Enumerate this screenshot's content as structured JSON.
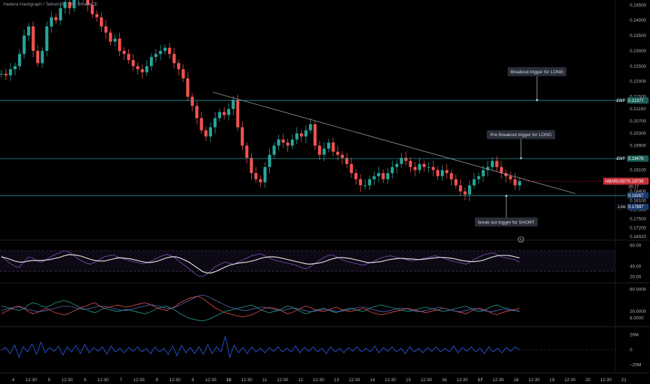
{
  "header": {
    "title": "Hedera Hashgraph / TetherUS · 1h · BINANCE"
  },
  "colors": {
    "up": "#26a69a",
    "down": "#ef5350",
    "level": "#2a9d9a",
    "trend": "#9aa0a8",
    "rsi": "#7e57c2",
    "rsi_ma": "#e0e0e0",
    "dmi_plus": "#26a69a",
    "dmi_minus": "#ef5350",
    "adx": "#5c6bc0",
    "osc": "#2962ff",
    "low_tag": "#1c3a6b",
    "price_tag": "#c62f3a"
  },
  "chart_data": [
    {
      "type": "candlestick",
      "pair": "HBARUSDT",
      "y_ticks": [
        "0.24500",
        "0.24000",
        "0.23500",
        "0.23000",
        "0.22500",
        "0.22000",
        "0.21500",
        "0.21100",
        "0.20700",
        "0.20300",
        "0.19900",
        "0.19500",
        "0.19100",
        "0.18700",
        "0.18400",
        "0.18100",
        "0.17800",
        "0.17500",
        "0.17200",
        "0.16920"
      ],
      "ylim": [
        0.1692,
        0.2462
      ],
      "x_ticks": [
        "4",
        "12:30",
        "5",
        "12:30",
        "6",
        "12:30",
        "7",
        "12:30",
        "8",
        "12:30",
        "9",
        "12:30",
        "10",
        "12:30",
        "11",
        "12:30",
        "12",
        "12:30",
        "13",
        "12:30",
        "14",
        "12:30",
        "15",
        "12:30",
        "16",
        "12:30",
        "17",
        "12:30",
        "18",
        "12:30",
        "19",
        "12:30",
        "20",
        "12:30",
        "21"
      ],
      "candles": [
        0.2225,
        0.222,
        0.224,
        0.225,
        0.229,
        0.235,
        0.238,
        0.23,
        0.226,
        0.23,
        0.238,
        0.241,
        0.24,
        0.244,
        0.246,
        0.244,
        0.247,
        0.25,
        0.248,
        0.245,
        0.242,
        0.241,
        0.238,
        0.236,
        0.233,
        0.234,
        0.23,
        0.229,
        0.227,
        0.225,
        0.224,
        0.223,
        0.225,
        0.228,
        0.229,
        0.23,
        0.231,
        0.229,
        0.226,
        0.224,
        0.221,
        0.215,
        0.212,
        0.208,
        0.204,
        0.202,
        0.205,
        0.208,
        0.21,
        0.209,
        0.211,
        0.214,
        0.205,
        0.199,
        0.195,
        0.19,
        0.188,
        0.187,
        0.192,
        0.196,
        0.199,
        0.201,
        0.2,
        0.199,
        0.201,
        0.203,
        0.202,
        0.204,
        0.206,
        0.199,
        0.196,
        0.198,
        0.2,
        0.197,
        0.196,
        0.195,
        0.193,
        0.19,
        0.188,
        0.186,
        0.186,
        0.188,
        0.189,
        0.19,
        0.188,
        0.19,
        0.192,
        0.193,
        0.195,
        0.194,
        0.192,
        0.191,
        0.193,
        0.192,
        0.192,
        0.191,
        0.189,
        0.191,
        0.19,
        0.188,
        0.186,
        0.184,
        0.183,
        0.186,
        0.188,
        0.189,
        0.191,
        0.192,
        0.194,
        0.192,
        0.19,
        0.189,
        0.188,
        0.186,
        0.1874
      ],
      "trendline": {
        "start": {
          "x": "9 12:30",
          "y": 0.2165
        },
        "end": {
          "x": "19 12:30",
          "y": 0.1833
        }
      },
      "levels": [
        {
          "label": "ENT",
          "value": "0.21377",
          "y": 0.21377
        },
        {
          "label": "ENT",
          "value": "0.19476",
          "y": 0.19476
        },
        {
          "label": "",
          "value": "0.18267",
          "y": 0.18267
        }
      ],
      "current_price": {
        "label": "HBARUSDT",
        "value": "0.18736",
        "countdown": "35:17",
        "y": 0.18736
      },
      "low": {
        "label": "Low",
        "value": "0.17897",
        "y": 0.17897
      },
      "annotations": [
        {
          "text": "Breakout trigger for LONG",
          "y": 0.2232
        },
        {
          "text": "Pre Breakout trigger for LONG",
          "y": 0.2026
        },
        {
          "text": "break out trigger for SHORT",
          "y": 0.174
        }
      ]
    },
    {
      "type": "line",
      "panel": "rsi",
      "y_ticks": [
        "80.00",
        "40.00",
        "20.00"
      ],
      "ylim": [
        15,
        82
      ],
      "bands": [
        70,
        30
      ],
      "series": [
        {
          "key": "rsi",
          "values": [
            60,
            52,
            45,
            40,
            38,
            48,
            58,
            56,
            50,
            48,
            52,
            58,
            62,
            66,
            70,
            68,
            62,
            55,
            50,
            46,
            44,
            48,
            53,
            58,
            60,
            62,
            58,
            55,
            52,
            50,
            48,
            46,
            45,
            48,
            52,
            56,
            60,
            63,
            60,
            55,
            48,
            42,
            35,
            28,
            22,
            20,
            25,
            32,
            40,
            44,
            48,
            46,
            44,
            48,
            52,
            56,
            60,
            62,
            64,
            60,
            56,
            52,
            50,
            48,
            46,
            44,
            42,
            38,
            35,
            38,
            44,
            50,
            56,
            60,
            62,
            58,
            54,
            50,
            48,
            46,
            44,
            42,
            45,
            48,
            52,
            56,
            58,
            60,
            58,
            56,
            54,
            52,
            50,
            52,
            54,
            56,
            58,
            60,
            58,
            55,
            52,
            50,
            48,
            46,
            44,
            48,
            54,
            58,
            62,
            64,
            66,
            62,
            58,
            56,
            54,
            52,
            48
          ]
        },
        {
          "key": "rsi_ma",
          "values": [
            58,
            56,
            53,
            50,
            48,
            48,
            50,
            51,
            51,
            51,
            52,
            53,
            55,
            57,
            60,
            62,
            62,
            61,
            59,
            56,
            53,
            51,
            50,
            50,
            52,
            54,
            56,
            56,
            55,
            54,
            52,
            50,
            48,
            47,
            48,
            50,
            53,
            56,
            58,
            58,
            56,
            52,
            48,
            42,
            36,
            30,
            27,
            27,
            30,
            34,
            38,
            42,
            44,
            46,
            47,
            48,
            50,
            52,
            55,
            57,
            58,
            58,
            57,
            55,
            53,
            51,
            49,
            47,
            45,
            44,
            45,
            46,
            48,
            51,
            54,
            56,
            57,
            56,
            55,
            53,
            51,
            49,
            47,
            47,
            48,
            49,
            51,
            53,
            54,
            55,
            55,
            54,
            54,
            53,
            53,
            54,
            55,
            56,
            57,
            57,
            56,
            55,
            53,
            51,
            50,
            49,
            49,
            50,
            52,
            55,
            58,
            60,
            61,
            61,
            60,
            58,
            56
          ]
        }
      ]
    },
    {
      "type": "line",
      "panel": "dmi",
      "y_ticks": [
        "60.0000",
        "20.0000",
        "8.0000"
      ],
      "ylim": [
        0,
        66
      ],
      "series": [
        {
          "key": "dmi_plus",
          "values": [
            30,
            28,
            26,
            24,
            22,
            25,
            32,
            36,
            34,
            30,
            28,
            31,
            36,
            38,
            40,
            38,
            34,
            30,
            26,
            24,
            20,
            18,
            22,
            26,
            24,
            22,
            20,
            22,
            24,
            22,
            20,
            18,
            16,
            18,
            22,
            26,
            28,
            30,
            26,
            22,
            16,
            12,
            8,
            6,
            4,
            3,
            5,
            8,
            12,
            16,
            20,
            22,
            24,
            26,
            28,
            30,
            32,
            28,
            24,
            20,
            18,
            20,
            22,
            26,
            30,
            28,
            24,
            20,
            16,
            18,
            22,
            24,
            26,
            24,
            20,
            18,
            22,
            24,
            26,
            24,
            22,
            20,
            24,
            28,
            30,
            32,
            30,
            28,
            26,
            24,
            22,
            20,
            22,
            24,
            26,
            28,
            26,
            24,
            22,
            20,
            22,
            24,
            26,
            28,
            30,
            26,
            22,
            20,
            22,
            26,
            30,
            32,
            28,
            26,
            24,
            22,
            20
          ]
        },
        {
          "key": "dmi_minus",
          "values": [
            16,
            20,
            24,
            28,
            30,
            26,
            20,
            16,
            18,
            22,
            26,
            22,
            18,
            16,
            14,
            16,
            20,
            24,
            28,
            30,
            34,
            36,
            30,
            26,
            28,
            30,
            32,
            30,
            28,
            30,
            32,
            34,
            36,
            34,
            30,
            26,
            24,
            22,
            26,
            30,
            36,
            40,
            44,
            46,
            48,
            44,
            38,
            32,
            26,
            22,
            18,
            16,
            14,
            12,
            10,
            12,
            14,
            18,
            22,
            26,
            28,
            26,
            24,
            20,
            16,
            18,
            22,
            26,
            30,
            28,
            24,
            22,
            20,
            22,
            26,
            28,
            24,
            22,
            20,
            22,
            24,
            26,
            22,
            18,
            16,
            14,
            16,
            18,
            20,
            22,
            24,
            26,
            24,
            22,
            20,
            18,
            20,
            22,
            24,
            26,
            24,
            22,
            20,
            18,
            16,
            20,
            24,
            26,
            24,
            20,
            16,
            14,
            18,
            20,
            22,
            24,
            26
          ]
        },
        {
          "key": "adx",
          "values": [
            22,
            24,
            26,
            28,
            28,
            26,
            24,
            22,
            20,
            20,
            22,
            24,
            26,
            28,
            30,
            30,
            28,
            26,
            24,
            24,
            26,
            28,
            30,
            30,
            28,
            26,
            24,
            22,
            22,
            24,
            26,
            28,
            30,
            32,
            32,
            30,
            28,
            26,
            26,
            28,
            32,
            36,
            40,
            44,
            48,
            50,
            48,
            44,
            40,
            36,
            32,
            28,
            26,
            24,
            22,
            22,
            24,
            26,
            28,
            28,
            26,
            24,
            22,
            22,
            24,
            26,
            26,
            24,
            22,
            20,
            20,
            22,
            24,
            24,
            22,
            20,
            20,
            22,
            24,
            26,
            28,
            28,
            26,
            24,
            22,
            20,
            20,
            22,
            24,
            26,
            26,
            24,
            22,
            20,
            20,
            22,
            24,
            26,
            28,
            26,
            24,
            22,
            20,
            20,
            22,
            24,
            26,
            24,
            22,
            20,
            20,
            22,
            24,
            24,
            22,
            22,
            21
          ]
        }
      ]
    },
    {
      "type": "line",
      "panel": "oscillator",
      "y_ticks": [
        "20M",
        "0",
        "−20M"
      ],
      "ylim": [
        -25,
        25
      ],
      "series": [
        {
          "key": "osc",
          "values": [
            0,
            3,
            -5,
            6,
            -10,
            4,
            -3,
            8,
            -6,
            10,
            -4,
            3,
            -2,
            5,
            -7,
            4,
            -3,
            6,
            -5,
            7,
            -4,
            3,
            -2,
            4,
            -6,
            5,
            -3,
            2,
            -4,
            3,
            -2,
            4,
            -3,
            2,
            -5,
            4,
            -3,
            2,
            -6,
            5,
            -8,
            6,
            -4,
            3,
            -5,
            4,
            -6,
            7,
            -5,
            4,
            -3,
            18,
            -10,
            6,
            -4,
            3,
            -5,
            4,
            -3,
            2,
            -4,
            3,
            -2,
            4,
            -3,
            2,
            -3,
            5,
            -4,
            3,
            -2,
            4,
            -3,
            2,
            -5,
            4,
            -3,
            2,
            -4,
            3,
            -2,
            4,
            -3,
            2,
            -3,
            5,
            -4,
            3,
            -2,
            4,
            -3,
            2,
            -5,
            4,
            -3,
            2,
            -4,
            3,
            -2,
            4,
            -3,
            2,
            -3,
            5,
            -4,
            3,
            -2,
            4,
            -3,
            2,
            -5,
            4,
            -3,
            2,
            -4,
            3,
            -2,
            4,
            0
          ]
        }
      ]
    }
  ]
}
